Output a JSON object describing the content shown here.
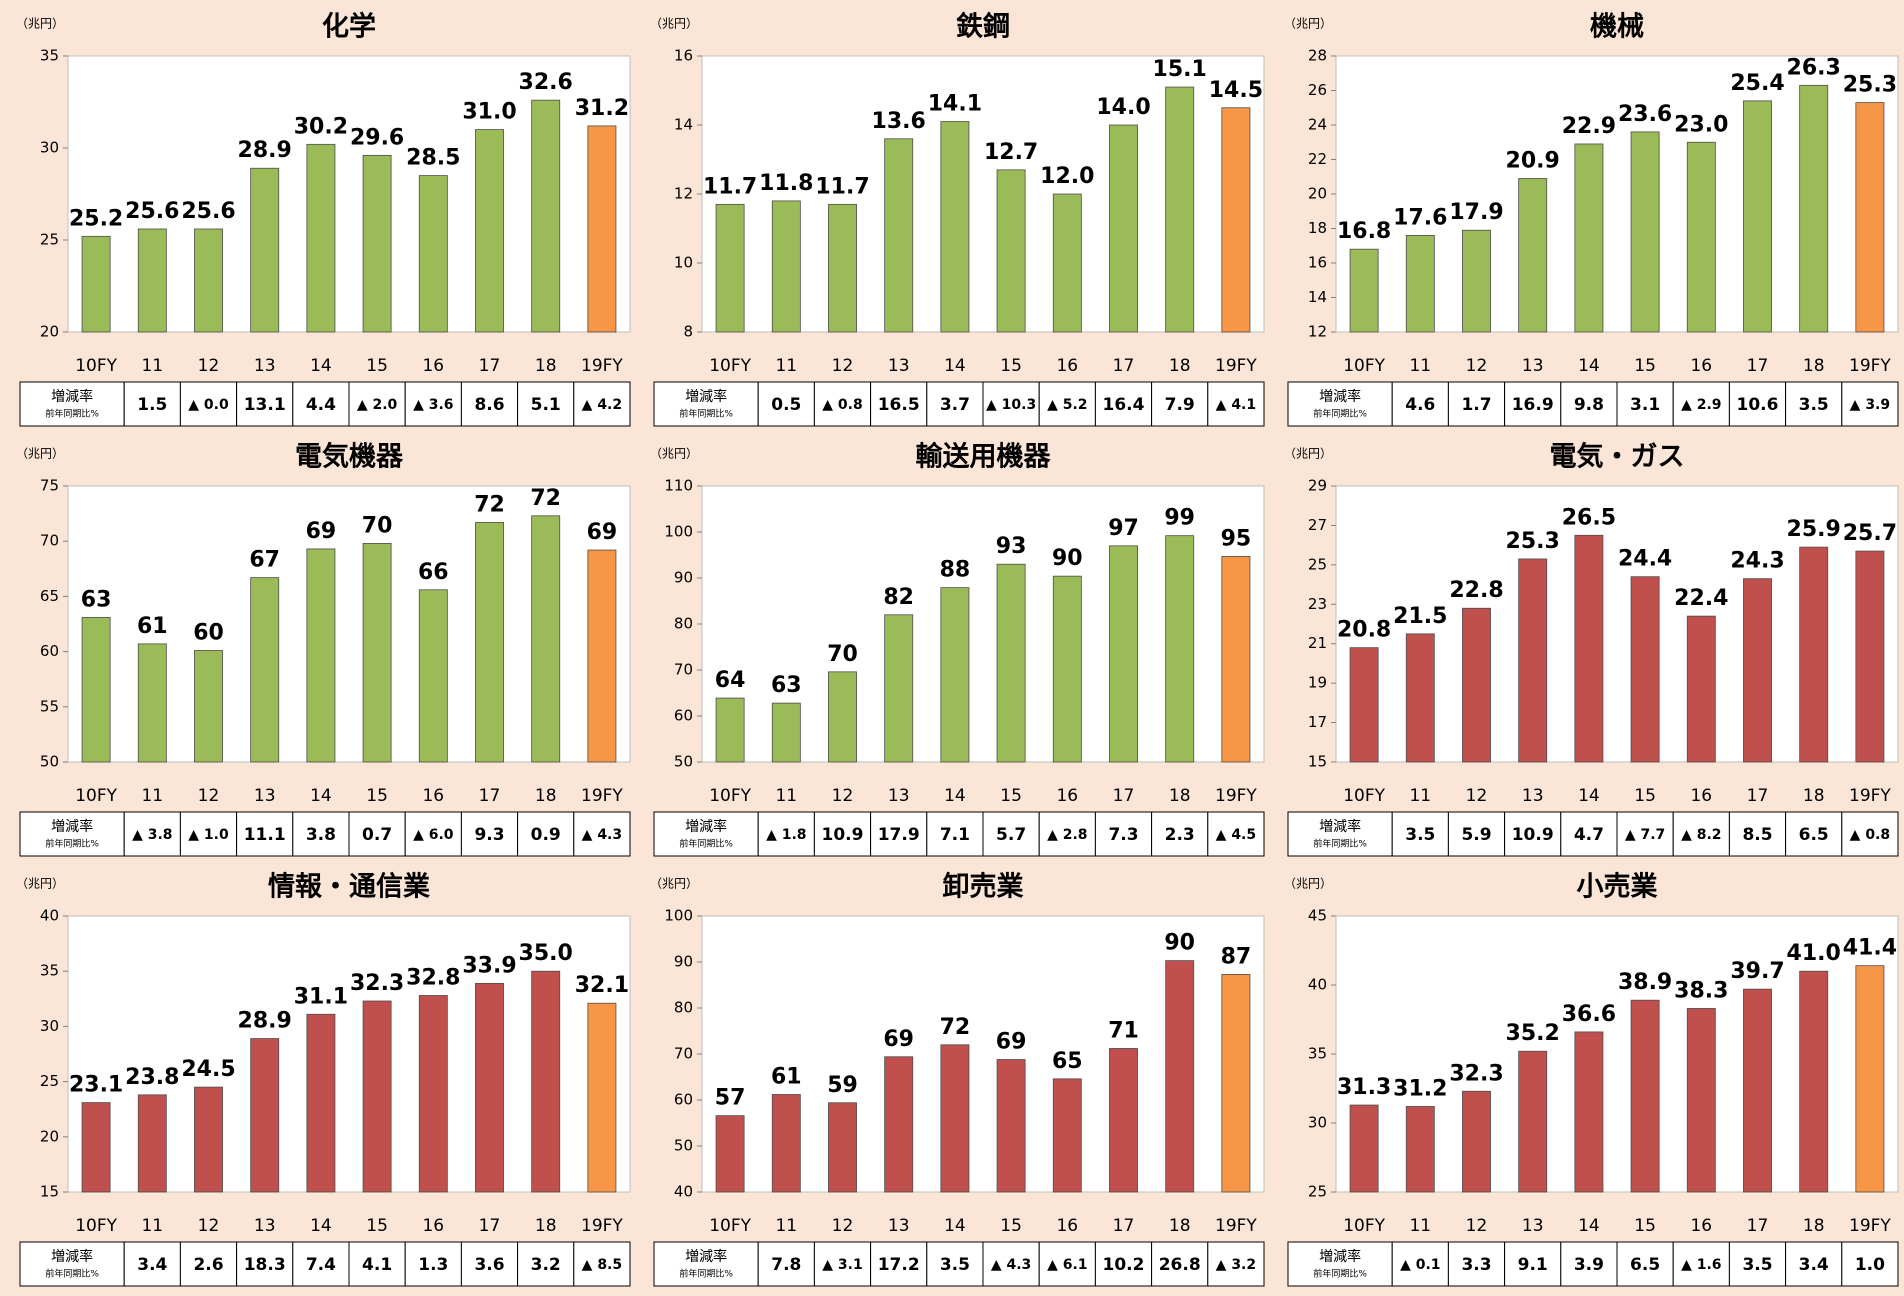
{
  "chart_data": [
    {
      "type": "bar",
      "title": "化学",
      "unit": "（兆円）",
      "categories": [
        "10FY",
        "11",
        "12",
        "13",
        "14",
        "15",
        "16",
        "17",
        "18",
        "19FY"
      ],
      "values": [
        25.2,
        25.6,
        25.6,
        28.9,
        30.2,
        29.6,
        28.5,
        31.0,
        32.6,
        31.2
      ],
      "value_labels": [
        "25.2",
        "25.6",
        "25.6",
        "28.9",
        "30.2",
        "29.6",
        "28.5",
        "31.0",
        "32.6",
        "31.2"
      ],
      "colors": [
        "#9bbb59",
        "#9bbb59",
        "#9bbb59",
        "#9bbb59",
        "#9bbb59",
        "#9bbb59",
        "#9bbb59",
        "#9bbb59",
        "#9bbb59",
        "#f79646"
      ],
      "ylim": [
        20,
        35
      ],
      "yticks": [
        20,
        25,
        30,
        35
      ],
      "growth": {
        "label": "増減率",
        "sublabel": "前年同期比%",
        "values": [
          1.5,
          -0.0,
          13.1,
          4.4,
          -2.0,
          -3.6,
          8.6,
          5.1,
          -4.2
        ],
        "value_labels": [
          "1.5",
          "▲ 0.0",
          "13.1",
          "4.4",
          "▲ 2.0",
          "▲ 3.6",
          "8.6",
          "5.1",
          "▲ 4.2"
        ]
      }
    },
    {
      "type": "bar",
      "title": "鉄鋼",
      "unit": "（兆円）",
      "categories": [
        "10FY",
        "11",
        "12",
        "13",
        "14",
        "15",
        "16",
        "17",
        "18",
        "19FY"
      ],
      "values": [
        11.7,
        11.8,
        11.7,
        13.6,
        14.1,
        12.7,
        12.0,
        14.0,
        15.1,
        14.5
      ],
      "value_labels": [
        "11.7",
        "11.8",
        "11.7",
        "13.6",
        "14.1",
        "12.7",
        "12.0",
        "14.0",
        "15.1",
        "14.5"
      ],
      "colors": [
        "#9bbb59",
        "#9bbb59",
        "#9bbb59",
        "#9bbb59",
        "#9bbb59",
        "#9bbb59",
        "#9bbb59",
        "#9bbb59",
        "#9bbb59",
        "#f79646"
      ],
      "ylim": [
        8,
        16
      ],
      "yticks": [
        8,
        10,
        12,
        14,
        16
      ],
      "growth": {
        "label": "増減率",
        "sublabel": "前年同期比%",
        "values": [
          0.5,
          -0.8,
          16.5,
          3.7,
          -10.3,
          -5.2,
          16.4,
          7.9,
          -4.1
        ],
        "value_labels": [
          "0.5",
          "▲ 0.8",
          "16.5",
          "3.7",
          "▲ 10.3",
          "▲ 5.2",
          "16.4",
          "7.9",
          "▲ 4.1"
        ]
      }
    },
    {
      "type": "bar",
      "title": "機械",
      "unit": "（兆円）",
      "categories": [
        "10FY",
        "11",
        "12",
        "13",
        "14",
        "15",
        "16",
        "17",
        "18",
        "19FY"
      ],
      "values": [
        16.8,
        17.6,
        17.9,
        20.9,
        22.9,
        23.6,
        23.0,
        25.4,
        26.3,
        25.3
      ],
      "value_labels": [
        "16.8",
        "17.6",
        "17.9",
        "20.9",
        "22.9",
        "23.6",
        "23.0",
        "25.4",
        "26.3",
        "25.3"
      ],
      "colors": [
        "#9bbb59",
        "#9bbb59",
        "#9bbb59",
        "#9bbb59",
        "#9bbb59",
        "#9bbb59",
        "#9bbb59",
        "#9bbb59",
        "#9bbb59",
        "#f79646"
      ],
      "ylim": [
        12,
        28
      ],
      "yticks": [
        12,
        14,
        16,
        18,
        20,
        22,
        24,
        26,
        28
      ],
      "growth": {
        "label": "増減率",
        "sublabel": "前年同期比%",
        "values": [
          4.6,
          1.7,
          16.9,
          9.8,
          3.1,
          -2.9,
          10.6,
          3.5,
          -3.9
        ],
        "value_labels": [
          "4.6",
          "1.7",
          "16.9",
          "9.8",
          "3.1",
          "▲ 2.9",
          "10.6",
          "3.5",
          "▲ 3.9"
        ]
      }
    },
    {
      "type": "bar",
      "title": "電気機器",
      "unit": "（兆円）",
      "categories": [
        "10FY",
        "11",
        "12",
        "13",
        "14",
        "15",
        "16",
        "17",
        "18",
        "19FY"
      ],
      "values": [
        63.1,
        60.7,
        60.1,
        66.7,
        69.3,
        69.8,
        65.6,
        71.7,
        72.3,
        69.2
      ],
      "value_labels": [
        "63",
        "61",
        "60",
        "67",
        "69",
        "70",
        "66",
        "72",
        "72",
        "69"
      ],
      "colors": [
        "#9bbb59",
        "#9bbb59",
        "#9bbb59",
        "#9bbb59",
        "#9bbb59",
        "#9bbb59",
        "#9bbb59",
        "#9bbb59",
        "#9bbb59",
        "#f79646"
      ],
      "ylim": [
        50,
        75
      ],
      "yticks": [
        50,
        55,
        60,
        65,
        70,
        75
      ],
      "growth": {
        "label": "増減率",
        "sublabel": "前年同期比%",
        "values": [
          -3.8,
          -1.0,
          11.1,
          3.8,
          0.7,
          -6.0,
          9.3,
          0.9,
          -4.3
        ],
        "value_labels": [
          "▲ 3.8",
          "▲ 1.0",
          "11.1",
          "3.8",
          "0.7",
          "▲ 6.0",
          "9.3",
          "0.9",
          "▲ 4.3"
        ]
      }
    },
    {
      "type": "bar",
      "title": "輸送用機器",
      "unit": "（兆円）",
      "categories": [
        "10FY",
        "11",
        "12",
        "13",
        "14",
        "15",
        "16",
        "17",
        "18",
        "19FY"
      ],
      "values": [
        63.9,
        62.8,
        69.6,
        82.0,
        87.9,
        93.0,
        90.4,
        97.0,
        99.2,
        94.7
      ],
      "value_labels": [
        "64",
        "63",
        "70",
        "82",
        "88",
        "93",
        "90",
        "97",
        "99",
        "95"
      ],
      "colors": [
        "#9bbb59",
        "#9bbb59",
        "#9bbb59",
        "#9bbb59",
        "#9bbb59",
        "#9bbb59",
        "#9bbb59",
        "#9bbb59",
        "#9bbb59",
        "#f79646"
      ],
      "ylim": [
        50,
        110
      ],
      "yticks": [
        50,
        60,
        70,
        80,
        90,
        100,
        110
      ],
      "growth": {
        "label": "増減率",
        "sublabel": "前年同期比%",
        "values": [
          -1.8,
          10.9,
          17.9,
          7.1,
          5.7,
          -2.8,
          7.3,
          2.3,
          -4.5
        ],
        "value_labels": [
          "▲ 1.8",
          "10.9",
          "17.9",
          "7.1",
          "5.7",
          "▲ 2.8",
          "7.3",
          "2.3",
          "▲ 4.5"
        ]
      }
    },
    {
      "type": "bar",
      "title": "電気・ガス",
      "unit": "（兆円）",
      "categories": [
        "10FY",
        "11",
        "12",
        "13",
        "14",
        "15",
        "16",
        "17",
        "18",
        "19FY"
      ],
      "values": [
        20.8,
        21.5,
        22.8,
        25.3,
        26.5,
        24.4,
        22.4,
        24.3,
        25.9,
        25.7
      ],
      "value_labels": [
        "20.8",
        "21.5",
        "22.8",
        "25.3",
        "26.5",
        "24.4",
        "22.4",
        "24.3",
        "25.9",
        "25.7"
      ],
      "colors": [
        "#c0504d",
        "#c0504d",
        "#c0504d",
        "#c0504d",
        "#c0504d",
        "#c0504d",
        "#c0504d",
        "#c0504d",
        "#c0504d",
        "#c0504d"
      ],
      "ylim": [
        15,
        29
      ],
      "yticks": [
        15,
        17,
        19,
        21,
        23,
        25,
        27,
        29
      ],
      "growth": {
        "label": "増減率",
        "sublabel": "前年同期比%",
        "values": [
          3.5,
          5.9,
          10.9,
          4.7,
          -7.7,
          -8.2,
          8.5,
          6.5,
          -0.8
        ],
        "value_labels": [
          "3.5",
          "5.9",
          "10.9",
          "4.7",
          "▲ 7.7",
          "▲ 8.2",
          "8.5",
          "6.5",
          "▲ 0.8"
        ]
      }
    },
    {
      "type": "bar",
      "title": "情報・通信業",
      "unit": "（兆円）",
      "categories": [
        "10FY",
        "11",
        "12",
        "13",
        "14",
        "15",
        "16",
        "17",
        "18",
        "19FY"
      ],
      "values": [
        23.1,
        23.8,
        24.5,
        28.9,
        31.1,
        32.3,
        32.8,
        33.9,
        35.0,
        32.1
      ],
      "value_labels": [
        "23.1",
        "23.8",
        "24.5",
        "28.9",
        "31.1",
        "32.3",
        "32.8",
        "33.9",
        "35.0",
        "32.1"
      ],
      "colors": [
        "#c0504d",
        "#c0504d",
        "#c0504d",
        "#c0504d",
        "#c0504d",
        "#c0504d",
        "#c0504d",
        "#c0504d",
        "#c0504d",
        "#f79646"
      ],
      "ylim": [
        15,
        40
      ],
      "yticks": [
        15,
        20,
        25,
        30,
        35,
        40
      ],
      "growth": {
        "label": "増減率",
        "sublabel": "前年同期比%",
        "values": [
          3.4,
          2.6,
          18.3,
          7.4,
          4.1,
          1.3,
          3.6,
          3.2,
          -8.5
        ],
        "value_labels": [
          "3.4",
          "2.6",
          "18.3",
          "7.4",
          "4.1",
          "1.3",
          "3.6",
          "3.2",
          "▲ 8.5"
        ]
      }
    },
    {
      "type": "bar",
      "title": "卸売業",
      "unit": "（兆円）",
      "categories": [
        "10FY",
        "11",
        "12",
        "13",
        "14",
        "15",
        "16",
        "17",
        "18",
        "19FY"
      ],
      "values": [
        56.6,
        61.2,
        59.4,
        69.4,
        72.0,
        68.8,
        64.6,
        71.2,
        90.3,
        87.3
      ],
      "value_labels": [
        "57",
        "61",
        "59",
        "69",
        "72",
        "69",
        "65",
        "71",
        "90",
        "87"
      ],
      "colors": [
        "#c0504d",
        "#c0504d",
        "#c0504d",
        "#c0504d",
        "#c0504d",
        "#c0504d",
        "#c0504d",
        "#c0504d",
        "#c0504d",
        "#f79646"
      ],
      "ylim": [
        40,
        100
      ],
      "yticks": [
        40,
        50,
        60,
        70,
        80,
        90,
        100
      ],
      "growth": {
        "label": "増減率",
        "sublabel": "前年同期比%",
        "values": [
          7.8,
          -3.1,
          17.2,
          3.5,
          -4.3,
          -6.1,
          10.2,
          26.8,
          -3.2
        ],
        "value_labels": [
          "7.8",
          "▲ 3.1",
          "17.2",
          "3.5",
          "▲ 4.3",
          "▲ 6.1",
          "10.2",
          "26.8",
          "▲ 3.2"
        ]
      }
    },
    {
      "type": "bar",
      "title": "小売業",
      "unit": "（兆円）",
      "categories": [
        "10FY",
        "11",
        "12",
        "13",
        "14",
        "15",
        "16",
        "17",
        "18",
        "19FY"
      ],
      "values": [
        31.3,
        31.2,
        32.3,
        35.2,
        36.6,
        38.9,
        38.3,
        39.7,
        41.0,
        41.4
      ],
      "value_labels": [
        "31.3",
        "31.2",
        "32.3",
        "35.2",
        "36.6",
        "38.9",
        "38.3",
        "39.7",
        "41.0",
        "41.4"
      ],
      "colors": [
        "#c0504d",
        "#c0504d",
        "#c0504d",
        "#c0504d",
        "#c0504d",
        "#c0504d",
        "#c0504d",
        "#c0504d",
        "#c0504d",
        "#f79646"
      ],
      "ylim": [
        25,
        45
      ],
      "yticks": [
        25,
        30,
        35,
        40,
        45
      ],
      "growth": {
        "label": "増減率",
        "sublabel": "前年同期比%",
        "values": [
          -0.1,
          3.3,
          9.1,
          3.9,
          6.5,
          -1.6,
          3.5,
          3.4,
          1.0
        ],
        "value_labels": [
          "▲ 0.1",
          "3.3",
          "9.1",
          "3.9",
          "6.5",
          "▲ 1.6",
          "3.5",
          "3.4",
          "1.0"
        ]
      }
    }
  ]
}
